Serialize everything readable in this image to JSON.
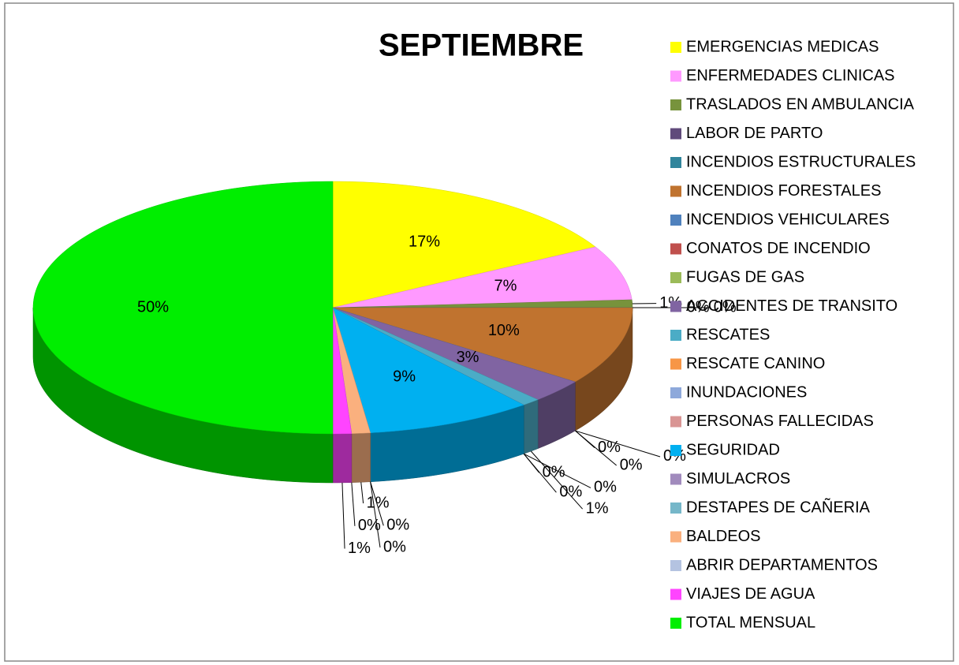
{
  "chart_data": {
    "type": "pie",
    "title": "SEPTIEMBRE",
    "categories": [
      "EMERGENCIAS MEDICAS",
      "ENFERMEDADES CLINICAS",
      "TRASLADOS EN AMBULANCIA",
      "LABOR DE PARTO",
      "INCENDIOS ESTRUCTURALES",
      "INCENDIOS FORESTALES",
      "INCENDIOS VEHICULARES",
      "CONATOS DE INCENDIO",
      "FUGAS DE GAS",
      "ACCIDENTES DE TRANSITO",
      "RESCATES",
      "RESCATE CANINO",
      "INUNDACIONES",
      "PERSONAS FALLECIDAS",
      "SEGURIDAD",
      "SIMULACROS",
      "DESTAPES DE CAÑERIA",
      "BALDEOS",
      "ABRIR DEPARTAMENTOS",
      "VIAJES DE AGUA",
      "TOTAL MENSUAL"
    ],
    "values": [
      17,
      7,
      1,
      0,
      0,
      10,
      0,
      0,
      0,
      3,
      1,
      0,
      0,
      0,
      9,
      0,
      0,
      1,
      0,
      1,
      50
    ],
    "value_labels": [
      "17%",
      "7%",
      "1%",
      "0%",
      "0%",
      "10%",
      "0%",
      "0%",
      "0%",
      "3%",
      "1%",
      "0%",
      "0%",
      "0%",
      "9%",
      "0%",
      "0%",
      "1%",
      "0%",
      "1%",
      "50%"
    ],
    "colors": [
      "#ffff00",
      "#ff99ff",
      "#77933c",
      "#604a7b",
      "#31859c",
      "#c0732f",
      "#4f81bd",
      "#c0504d",
      "#9bbb59",
      "#8064a2",
      "#4bacc6",
      "#f79646",
      "#8ea9db",
      "#d99594",
      "#00b0f0",
      "#a18bbd",
      "#76b7c9",
      "#fab07e",
      "#b4c3e1",
      "#ff44ff",
      "#00ee00"
    ],
    "legend": "right"
  }
}
